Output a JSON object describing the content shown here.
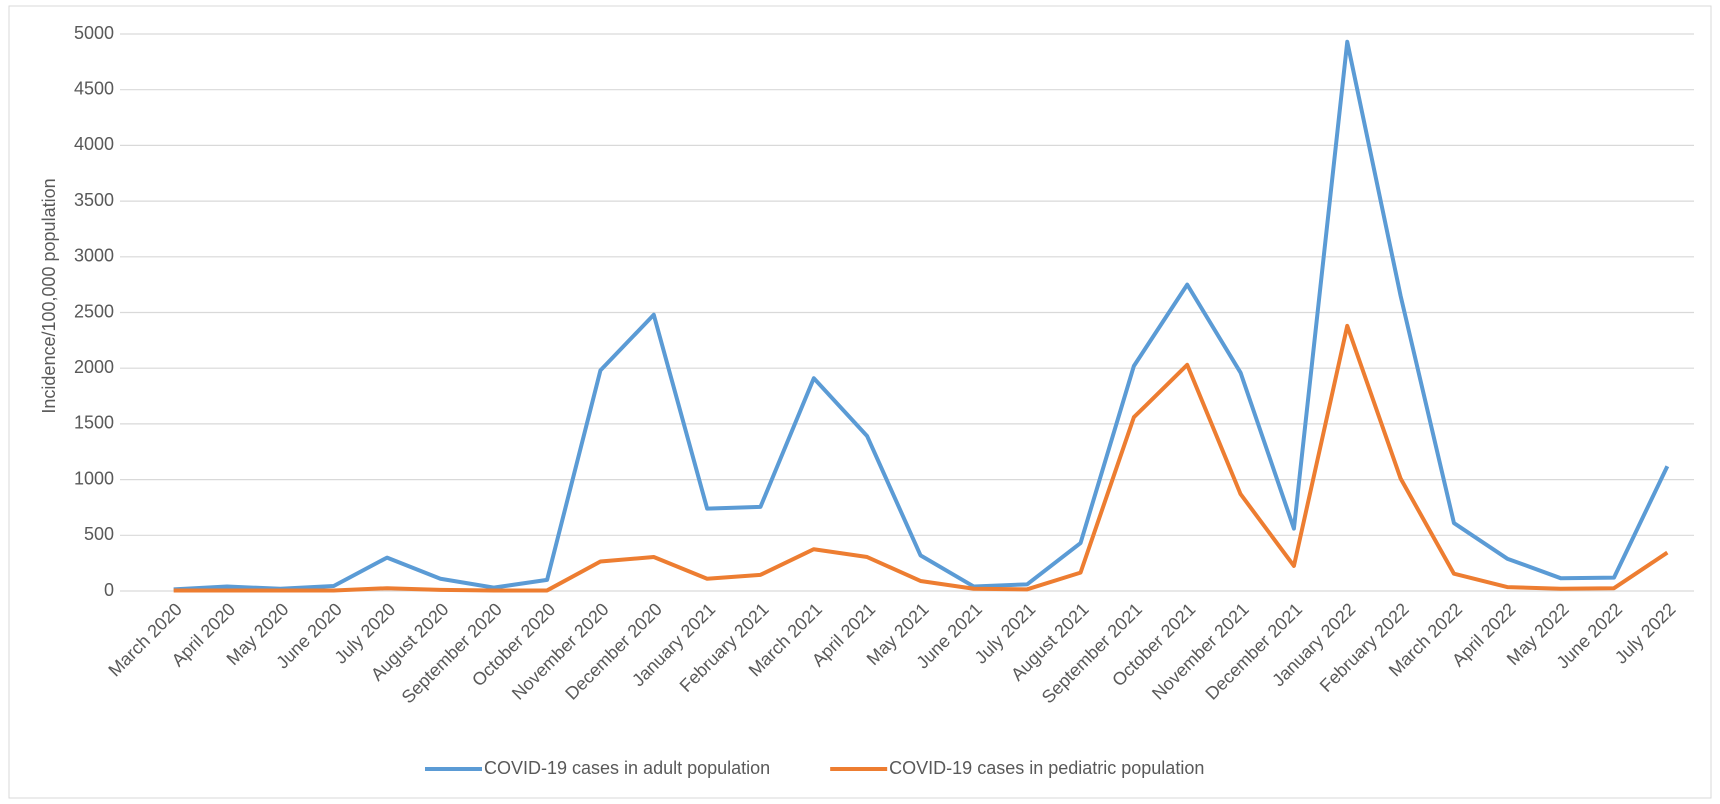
{
  "chart_data": {
    "type": "line",
    "y_label": "Incidence/100,000 population",
    "categories": [
      "March 2020",
      "April 2020",
      "May 2020",
      "June 2020",
      "July 2020",
      "August 2020",
      "September 2020",
      "October 2020",
      "November 2020",
      "December 2020",
      "January 2021",
      "February 2021",
      "March 2021",
      "April 2021",
      "May 2021",
      "June 2021",
      "July 2021",
      "August 2021",
      "September 2021",
      "October 2021",
      "November 2021",
      "December 2021",
      "January 2022",
      "February 2022",
      "March 2022",
      "April 2022",
      "May 2022",
      "June 2022",
      "July 2022"
    ],
    "series": [
      {
        "name": "COVID-19 cases in adult population",
        "color": "#5b9bd5",
        "values": [
          15,
          40,
          20,
          45,
          300,
          110,
          30,
          100,
          1980,
          2480,
          740,
          755,
          1910,
          1390,
          320,
          40,
          60,
          430,
          2020,
          2750,
          1960,
          560,
          4930,
          2650,
          610,
          290,
          115,
          120,
          1120
        ]
      },
      {
        "name": "COVID-19 cases in pediatric population",
        "color": "#ed7d31",
        "values": [
          5,
          5,
          5,
          5,
          25,
          10,
          5,
          5,
          265,
          305,
          110,
          145,
          375,
          305,
          90,
          20,
          15,
          165,
          1560,
          2030,
          870,
          225,
          2380,
          1010,
          155,
          35,
          20,
          25,
          345
        ]
      }
    ],
    "ylim": [
      0,
      5000
    ],
    "yticks": [
      0,
      500,
      1000,
      1500,
      2000,
      2500,
      3000,
      3500,
      4000,
      4500,
      5000
    ],
    "grid": true,
    "legend": "bottom"
  }
}
